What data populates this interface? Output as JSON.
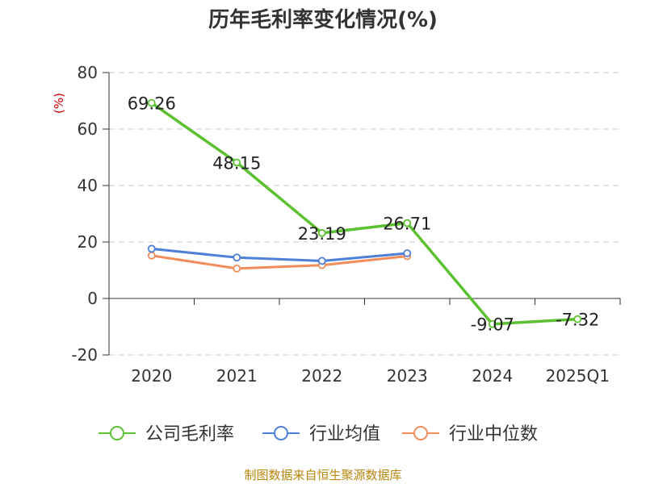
{
  "chart_data": {
    "type": "line",
    "title": "历年毛利率变化情况(%)",
    "ylabel": "(%)",
    "xlabel": "",
    "categories": [
      "2020",
      "2021",
      "2022",
      "2023",
      "2024",
      "2025Q1"
    ],
    "y_ticks": [
      "80",
      "60",
      "40",
      "20",
      "0",
      "-20"
    ],
    "ylim": [
      -20,
      80
    ],
    "grid": true,
    "legend_position": "bottom",
    "series": [
      {
        "name": "公司毛利率",
        "color": "#5cc130",
        "values": [
          69.26,
          48.15,
          23.19,
          26.71,
          -9.07,
          -7.32
        ],
        "labels": [
          "69.26",
          "48.15",
          "23.19",
          "26.71",
          "-9.07",
          "-7.32"
        ]
      },
      {
        "name": "行业均值",
        "color": "#4e7fd9",
        "values": [
          17.6,
          14.5,
          13.3,
          16.0,
          null,
          null
        ]
      },
      {
        "name": "行业中位数",
        "color": "#f28c5a",
        "values": [
          15.2,
          10.6,
          11.8,
          15.0,
          null,
          null
        ]
      }
    ]
  },
  "source": "制图数据来自恒生聚源数据库"
}
